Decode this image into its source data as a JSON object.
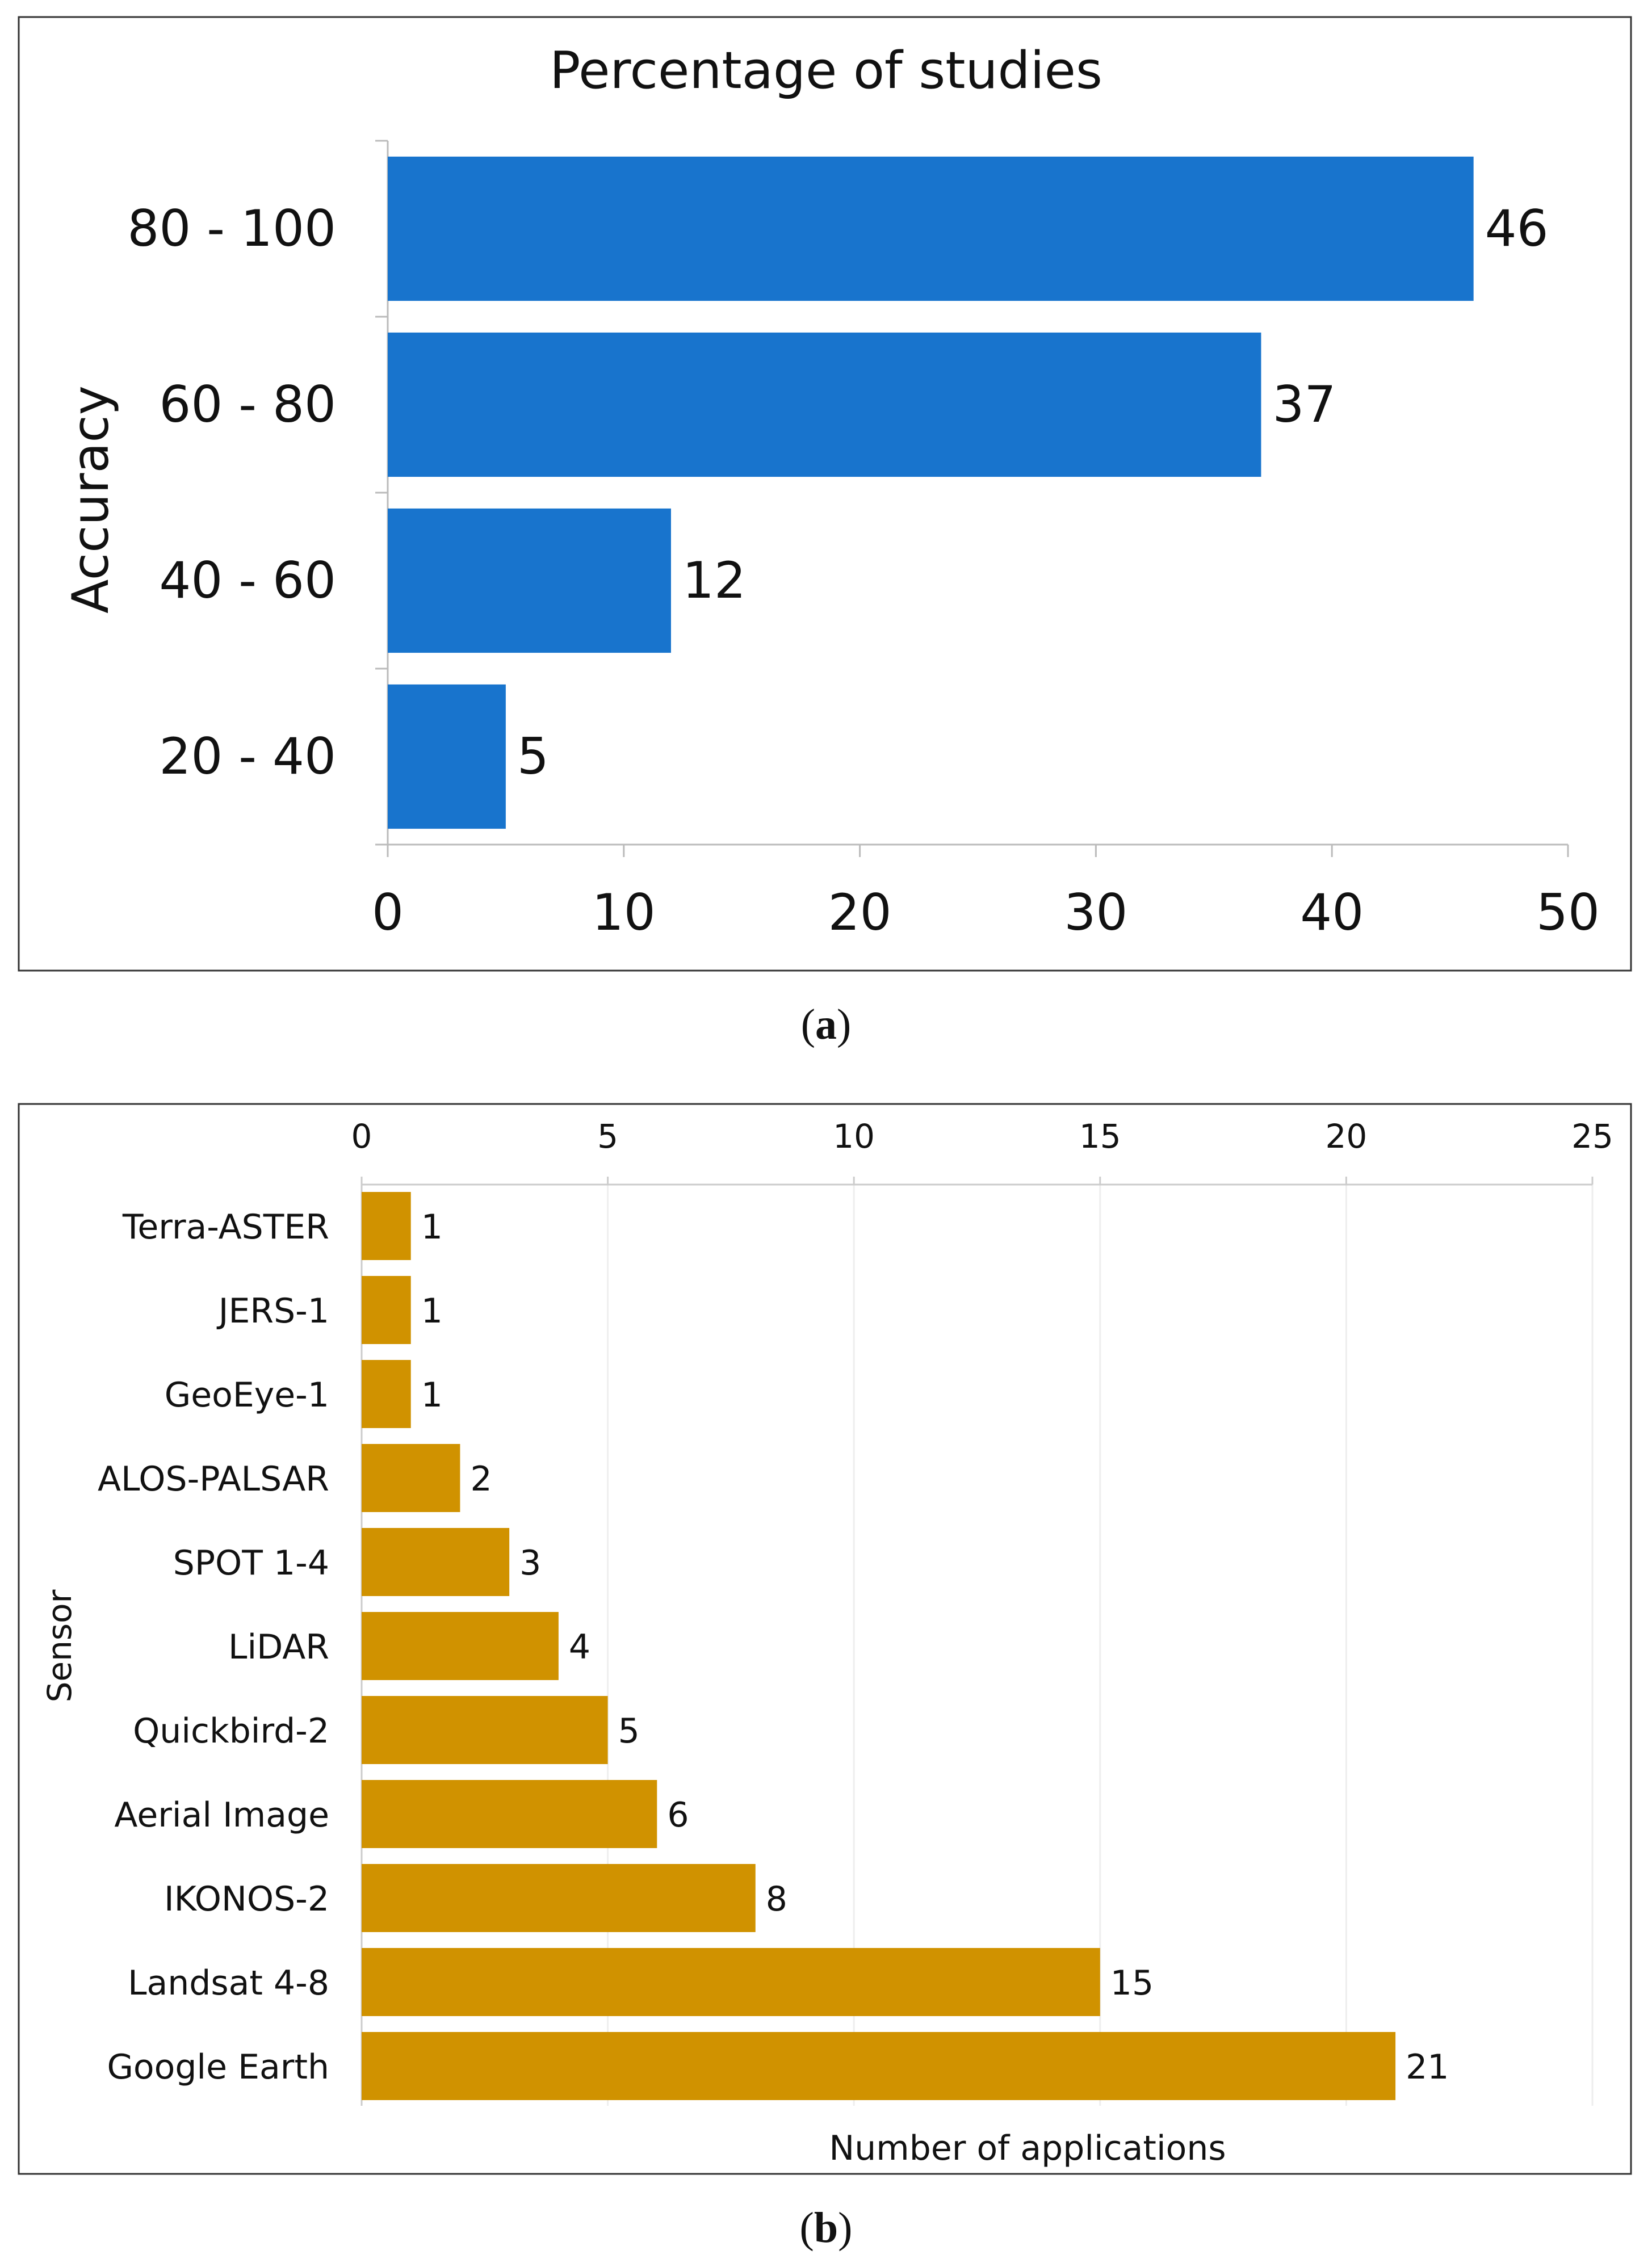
{
  "chart_data": [
    {
      "type": "bar",
      "orientation": "horizontal",
      "title": "Percentage of studies",
      "ylabel": "Accuracy",
      "xlabel": "",
      "categories": [
        "80 - 100",
        "60 - 80",
        "40 - 60",
        "20 - 40"
      ],
      "values": [
        46,
        37,
        12,
        5
      ],
      "xlim": [
        0,
        50
      ],
      "ticks": [
        0,
        10,
        20,
        30,
        40,
        50
      ],
      "bar_color": "#1874CD",
      "grid": false,
      "caption_prefix": "(",
      "caption_letter": "a",
      "caption_suffix": ")"
    },
    {
      "type": "bar",
      "orientation": "horizontal",
      "title": "",
      "ylabel": "Sensor",
      "xlabel": "Number of applications",
      "categories": [
        "Terra-ASTER",
        "JERS-1",
        "GeoEye-1",
        "ALOS-PALSAR",
        "SPOT 1-4",
        "LiDAR",
        "Quickbird-2",
        "Aerial Image",
        "IKONOS-2",
        "Landsat 4-8",
        "Google Earth"
      ],
      "values": [
        1,
        1,
        1,
        2,
        3,
        4,
        5,
        6,
        8,
        15,
        21
      ],
      "xlim": [
        0,
        25
      ],
      "ticks": [
        0,
        5,
        10,
        15,
        20,
        25
      ],
      "bar_color": "#D09200",
      "grid": true,
      "axis_position": "top",
      "caption_prefix": "(",
      "caption_letter": "b",
      "caption_suffix": ")"
    }
  ]
}
